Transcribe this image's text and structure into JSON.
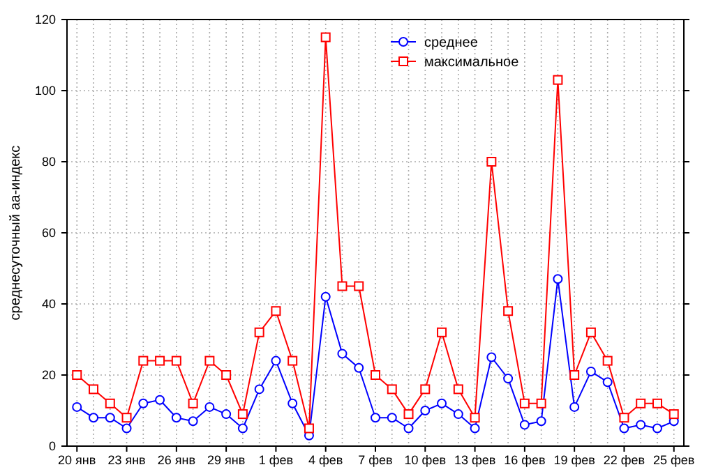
{
  "chart_data": {
    "type": "line",
    "ylabel": "среднесуточный аа-индекс",
    "categories": [
      "20 янв",
      null,
      null,
      "23 янв",
      null,
      null,
      "26 янв",
      null,
      null,
      "29 янв",
      null,
      null,
      "1 фев",
      null,
      null,
      "4 фев",
      null,
      null,
      "7 фев",
      null,
      null,
      "10 фев",
      null,
      null,
      "13 фев",
      null,
      null,
      "16 фев",
      null,
      null,
      "19 фев",
      null,
      null,
      "22 фев",
      null,
      null,
      "25 фев"
    ],
    "series": [
      {
        "name": "среднее",
        "color": "#0000ff",
        "marker": "circle",
        "values": [
          11,
          8,
          8,
          5,
          12,
          13,
          8,
          7,
          11,
          9,
          5,
          16,
          24,
          12,
          3,
          42,
          26,
          22,
          8,
          8,
          5,
          10,
          12,
          9,
          5,
          25,
          19,
          6,
          7,
          47,
          11,
          21,
          18,
          5,
          6,
          5,
          7
        ]
      },
      {
        "name": "максимальное",
        "color": "#ff0000",
        "marker": "square",
        "values": [
          20,
          16,
          12,
          8,
          24,
          24,
          24,
          12,
          24,
          20,
          9,
          32,
          38,
          24,
          5,
          115,
          45,
          45,
          20,
          16,
          9,
          16,
          32,
          16,
          8,
          80,
          38,
          12,
          12,
          103,
          20,
          32,
          24,
          8,
          12,
          12,
          9
        ]
      }
    ],
    "ylim": [
      0,
      120
    ],
    "yticks": [
      0,
      20,
      40,
      60,
      80,
      100,
      120
    ],
    "grid": true,
    "legend": "top"
  }
}
